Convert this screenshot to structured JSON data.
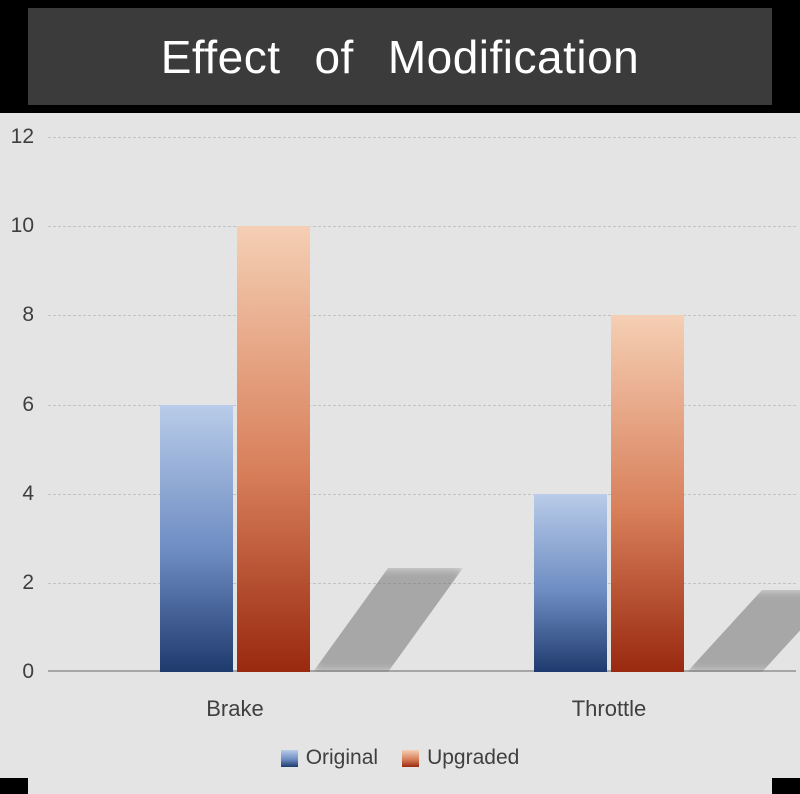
{
  "title_bar": {
    "title": "Effect of Modification"
  },
  "chart_data": {
    "type": "bar",
    "title": "Effect of Modification",
    "categories": [
      "Brake",
      "Throttle"
    ],
    "series": [
      {
        "name": "Original",
        "values": [
          6,
          4
        ],
        "gradient_top": "#b9cce9",
        "gradient_mid": "#6d8cc2",
        "gradient_bottom": "#1f3a6d"
      },
      {
        "name": "Upgraded",
        "values": [
          10,
          8
        ],
        "gradient_top": "#f5cfb4",
        "gradient_mid": "#d87f5a",
        "gradient_bottom": "#99290f"
      }
    ],
    "ylim": [
      0,
      12
    ],
    "y_ticks": [
      0,
      2,
      4,
      6,
      8,
      10,
      12
    ],
    "grid": "horizontal-dashed",
    "legend_position": "bottom-center",
    "xlabel": "",
    "ylabel": ""
  },
  "colors": {
    "title_bar_bg": "#3b3b3b",
    "title_text": "#ffffff",
    "chart_bg": "#e4e4e4",
    "slide_bg": "#000000",
    "axis_text": "#3f3f3f",
    "gridline": "#c3c3c3"
  }
}
